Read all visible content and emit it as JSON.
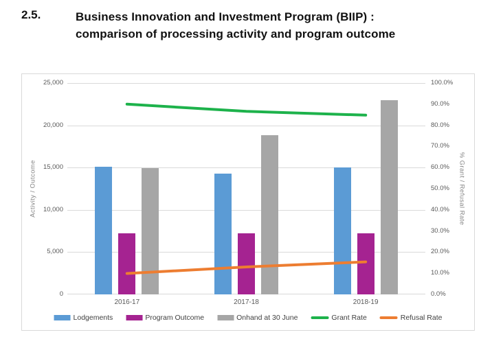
{
  "heading": {
    "number": "2.5.",
    "title_line1": "Business Innovation and Investment Program (BIIP) :",
    "title_line2": "comparison of processing activity and program outcome"
  },
  "chart_data": {
    "type": "bar",
    "subtype": "combo-bar-line-dual-axis",
    "categories": [
      "2016-17",
      "2017-18",
      "2018-19"
    ],
    "bar_series": [
      {
        "name": "Lodgements",
        "color": "#5B9BD5",
        "axis": "left",
        "values": [
          15100,
          14250,
          15000
        ]
      },
      {
        "name": "Program Outcome",
        "color": "#A52391",
        "axis": "left",
        "values": [
          7250,
          7250,
          7250
        ]
      },
      {
        "name": "Onhand at 30 June",
        "color": "#A6A6A6",
        "axis": "left",
        "values": [
          14900,
          18850,
          23000
        ]
      }
    ],
    "line_series": [
      {
        "name": "Grant Rate",
        "color": "#1DB24B",
        "axis": "right",
        "values_pct": [
          90.0,
          86.6,
          84.8
        ]
      },
      {
        "name": "Refusal Rate",
        "color": "#ED7D31",
        "axis": "right",
        "values_pct": [
          9.9,
          13.0,
          15.4
        ]
      }
    ],
    "left_axis": {
      "title": "Activity / Outcome",
      "min": 0,
      "max": 25000,
      "step": 5000,
      "ticks": [
        "25,000",
        "20,000",
        "15,000",
        "10,000",
        "5,000",
        "0"
      ]
    },
    "right_axis": {
      "title": "% Grant / Refusal Rate",
      "min": 0,
      "max": 100,
      "step": 10,
      "ticks": [
        "100.0%",
        "90.0%",
        "80.0%",
        "70.0%",
        "60.0%",
        "50.0%",
        "40.0%",
        "30.0%",
        "20.0%",
        "10.0%",
        "0.0%"
      ]
    },
    "grid": "horizontal gridlines at left-axis steps of 5,000",
    "legend_position": "bottom"
  }
}
